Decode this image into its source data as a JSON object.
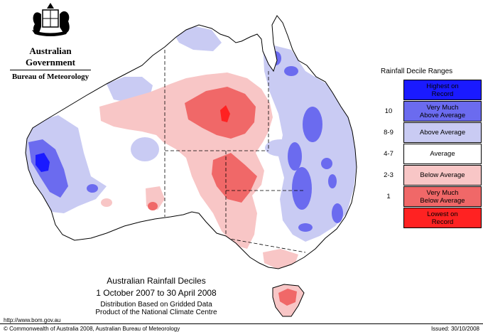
{
  "header": {
    "government": "Australian Government",
    "bureau": "Bureau of Meteorology"
  },
  "legend": {
    "title": "Rainfall Decile Ranges",
    "items": [
      {
        "range": "",
        "label_lines": [
          "Highest on",
          "Record"
        ],
        "color": "#1a1aff",
        "text_color": "#000000"
      },
      {
        "range": "10",
        "label_lines": [
          "Very Much",
          "Above Average"
        ],
        "color": "#6b6bef",
        "text_color": "#000000"
      },
      {
        "range": "8-9",
        "label_lines": [
          "Above Average"
        ],
        "color": "#c9cbf3",
        "text_color": "#000000"
      },
      {
        "range": "4-7",
        "label_lines": [
          "Average"
        ],
        "color": "#ffffff",
        "text_color": "#000000"
      },
      {
        "range": "2-3",
        "label_lines": [
          "Below Average"
        ],
        "color": "#f8c6c6",
        "text_color": "#000000"
      },
      {
        "range": "1",
        "label_lines": [
          "Very Much",
          "Below Average"
        ],
        "color": "#f06868",
        "text_color": "#000000"
      },
      {
        "range": "",
        "label_lines": [
          "Lowest on",
          "Record"
        ],
        "color": "#ff2222",
        "text_color": "#000000"
      }
    ]
  },
  "caption": {
    "title": "Australian Rainfall Deciles",
    "dates": "1 October 2007 to 30 April 2008",
    "line1": "Distribution Based on Gridded Data",
    "line2": "Product of the National Climate Centre"
  },
  "footer": {
    "url": "http://www.bom.gov.au",
    "copyright": "© Commonwealth of Australia 2008, Australian Bureau of Meteorology",
    "issued": "Issued: 30/10/2008"
  },
  "colors": {
    "land": "#ffffff",
    "coast": "#000000",
    "above": "#c9cbf3",
    "very_above": "#6b6bef",
    "highest": "#1a1aff",
    "below": "#f8c6c6",
    "very_below": "#f06868",
    "lowest": "#ff2222"
  }
}
